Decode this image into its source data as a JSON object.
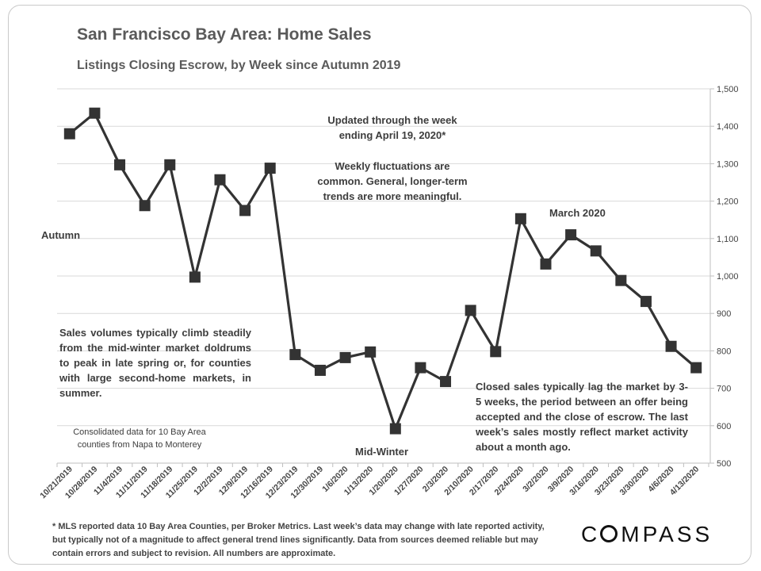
{
  "chart_data": {
    "type": "line",
    "title": "San Francisco Bay Area: Home Sales",
    "subtitle": "Listings Closing Escrow, by Week since Autumn 2019",
    "categories": [
      "10/21/2019",
      "10/28/2019",
      "11/4/2019",
      "11/11/2019",
      "11/18/2019",
      "11/25/2019",
      "12/2/2019",
      "12/9/2019",
      "12/16/2019",
      "12/23/2019",
      "12/30/2019",
      "1/6/2020",
      "1/13/2020",
      "1/20/2020",
      "1/27/2020",
      "2/3/2020",
      "2/10/2020",
      "2/17/2020",
      "2/24/2020",
      "3/2/2020",
      "3/9/2020",
      "3/16/2020",
      "3/23/2020",
      "3/30/2020",
      "4/6/2020",
      "4/13/2020"
    ],
    "values": [
      1380,
      1435,
      1297,
      1188,
      1297,
      997,
      1257,
      1175,
      1288,
      790,
      748,
      782,
      797,
      592,
      755,
      718,
      908,
      798,
      1153,
      1032,
      1110,
      1067,
      988,
      932,
      812,
      755
    ],
    "ylim": [
      500,
      1500
    ],
    "yticks": [
      500,
      600,
      700,
      800,
      900,
      1000,
      1100,
      1200,
      1300,
      1400,
      1500
    ],
    "ytick_labels": [
      "500",
      "600",
      "700",
      "800",
      "900",
      "1,000",
      "1,100",
      "1,200",
      "1,300",
      "1,400",
      "1,500"
    ],
    "y_axis_side": "right",
    "grid": true,
    "annotations": {
      "updated": "Updated through the week ending April 19, 2020*",
      "fluctuations": "Weekly fluctuations are common. General, longer-term trends are more meaningful.",
      "march": "March 2020",
      "autumn": "Autumn",
      "mid_winter": "Mid-Winter",
      "sales_volumes": "Sales volumes typically climb steadily from the mid-winter market doldrums to peak in late spring or, for counties with large second-home markets, in summer.",
      "consolidated": "Consolidated data for 10 Bay Area counties from Napa to Monterey",
      "closed_sales": "Closed sales typically lag the market by 3-5 weeks, the period between an offer being accepted and the close of escrow. The last week’s sales mostly reflect market activity about a month ago."
    }
  },
  "footnote": "* MLS reported data 10 Bay Area Counties, per Broker Metrics. Last week’s data may change with late reported activity, but typically not of a magnitude to affect general trend lines significantly. Data from sources deemed reliable but may contain errors and subject to revision.  All numbers are approximate.",
  "logo": "COMPASS",
  "colors": {
    "line": "#333333",
    "grid": "#d9d9d9",
    "text": "#3d3d3d"
  }
}
